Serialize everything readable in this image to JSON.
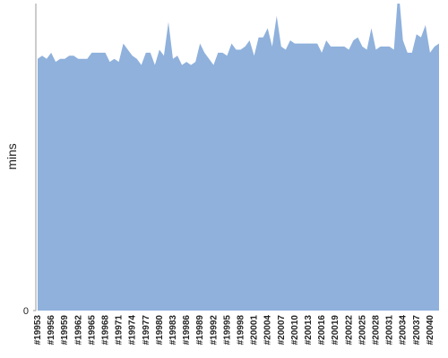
{
  "chart_data": {
    "type": "area",
    "y_label": "mins",
    "color": "#8fb1dc",
    "categories": [
      "#19953",
      null,
      null,
      "#19956",
      null,
      null,
      "#19959",
      null,
      null,
      "#19962",
      null,
      null,
      "#19965",
      null,
      null,
      "#19968",
      null,
      null,
      "#19971",
      null,
      null,
      "#19974",
      null,
      null,
      "#19977",
      null,
      null,
      "#19980",
      null,
      null,
      "#19983",
      null,
      null,
      "#19986",
      null,
      null,
      "#19989",
      null,
      null,
      "#19992",
      null,
      null,
      "#19995",
      null,
      null,
      "#19998",
      null,
      null,
      "#20001",
      null,
      null,
      "#20004",
      null,
      null,
      "#20007",
      null,
      null,
      "#20010",
      null,
      null,
      "#20013",
      null,
      null,
      "#20016",
      null,
      null,
      "#20019",
      null,
      null,
      "#20022",
      null,
      null,
      "#20025",
      null,
      null,
      "#20028",
      null,
      null,
      "#20031",
      null,
      null,
      "#20034",
      null,
      null,
      "#20037",
      null,
      null,
      "#20040",
      null,
      null
    ],
    "values": [
      82,
      83,
      82,
      84,
      81,
      82,
      82,
      83,
      83,
      82,
      82,
      82,
      84,
      84,
      84,
      84,
      81,
      82,
      81,
      87,
      85,
      83,
      82,
      80,
      84,
      84,
      80,
      85,
      83,
      94,
      82,
      83,
      80,
      81,
      80,
      81,
      87,
      84,
      82,
      80,
      84,
      84,
      83,
      87,
      85,
      85,
      86,
      88,
      83,
      89,
      89,
      92,
      86,
      96,
      86,
      85,
      88,
      87,
      87,
      87,
      87,
      87,
      87,
      84,
      88,
      86,
      86,
      86,
      86,
      85,
      88,
      89,
      86,
      85,
      92,
      85,
      86,
      86,
      86,
      85,
      105,
      88,
      84,
      84,
      90,
      89,
      93,
      84,
      86,
      87
    ],
    "ylim": [
      0,
      100
    ],
    "yticks": [
      0
    ]
  }
}
